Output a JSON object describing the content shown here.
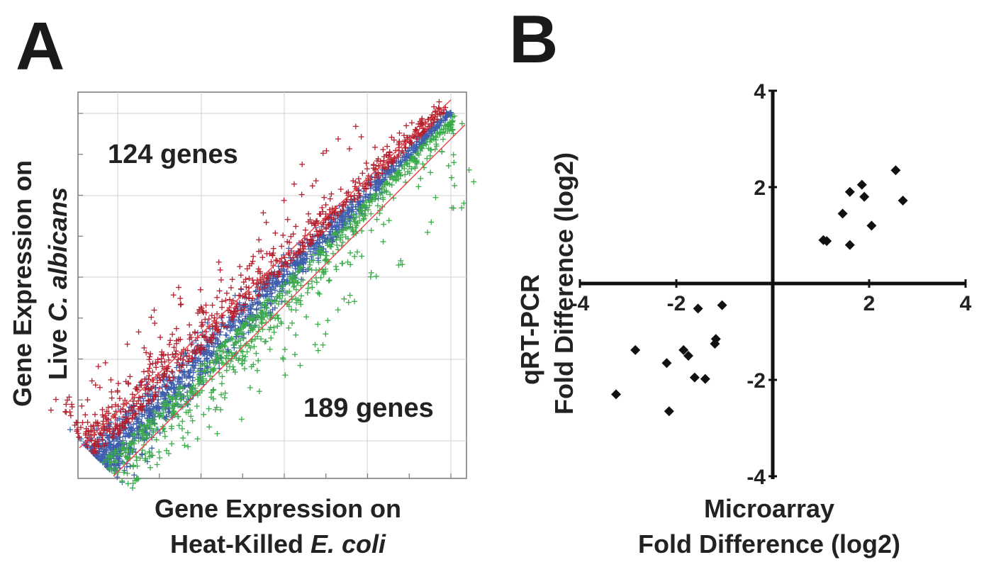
{
  "figure": {
    "panel_a_letter": "A",
    "panel_b_letter": "B"
  },
  "chart_data": [
    {
      "type": "scatter",
      "panel": "A",
      "xlabel_line1": "Gene Expression on",
      "xlabel_line2_prefix": "Heat-Killed ",
      "xlabel_line2_italic": "E. coli",
      "ylabel_line1": "Gene Expression on",
      "ylabel_line2_prefix": "Live ",
      "ylabel_line2_italic": "C. albicans",
      "grid": true,
      "annotations": [
        {
          "text": "124 genes",
          "color": "#b5202e"
        },
        {
          "text": "189 genes",
          "color": "#3aab49"
        }
      ],
      "colors": {
        "up": "#b5202e",
        "down": "#3aab49",
        "unchanged": "#3f5fad",
        "threshold_line": "#e8474c"
      },
      "series": [
        {
          "category": "up",
          "count": 124
        },
        {
          "category": "down",
          "count": 189
        }
      ]
    },
    {
      "type": "scatter",
      "panel": "B",
      "xlabel_line1": "Microarray",
      "xlabel_line2": "Fold Difference (log2)",
      "ylabel_line1": "qRT-PCR",
      "ylabel_line2": "Fold Difference (log2)",
      "xlim": [
        -4,
        4
      ],
      "ylim": [
        -4,
        4
      ],
      "xticks": [
        -4,
        -2,
        2,
        4
      ],
      "yticks": [
        4,
        2,
        -2,
        -4
      ],
      "grid": false,
      "marker": "diamond",
      "color": "#111111",
      "points": [
        {
          "x": 1.05,
          "y": 0.9
        },
        {
          "x": 1.12,
          "y": 0.88
        },
        {
          "x": 1.45,
          "y": 1.45
        },
        {
          "x": 1.6,
          "y": 0.8
        },
        {
          "x": 1.6,
          "y": 1.9
        },
        {
          "x": 1.85,
          "y": 2.05
        },
        {
          "x": 1.9,
          "y": 1.8
        },
        {
          "x": 2.05,
          "y": 1.2
        },
        {
          "x": 2.55,
          "y": 2.35
        },
        {
          "x": 2.7,
          "y": 1.72
        },
        {
          "x": -3.25,
          "y": -2.3
        },
        {
          "x": -2.85,
          "y": -1.38
        },
        {
          "x": -2.2,
          "y": -1.65
        },
        {
          "x": -2.15,
          "y": -2.65
        },
        {
          "x": -1.85,
          "y": -1.38
        },
        {
          "x": -1.75,
          "y": -1.5
        },
        {
          "x": -1.62,
          "y": -1.95
        },
        {
          "x": -1.55,
          "y": -0.52
        },
        {
          "x": -1.4,
          "y": -1.98
        },
        {
          "x": -1.2,
          "y": -1.25
        },
        {
          "x": -1.18,
          "y": -1.15
        },
        {
          "x": -1.05,
          "y": -0.45
        }
      ]
    }
  ]
}
